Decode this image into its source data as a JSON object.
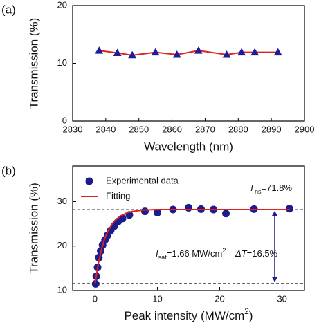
{
  "chart_data": [
    {
      "type": "line",
      "panel_label": "(a)",
      "xlabel": "Wavelength (nm)",
      "ylabel": "Transmission (%)",
      "x": [
        2838,
        2843.5,
        2848,
        2855,
        2861.5,
        2868,
        2876.5,
        2881,
        2885,
        2892
      ],
      "series": [
        {
          "marker": "triangle",
          "color": "#1c1c9c",
          "line_color": "#e0201c",
          "values": [
            12.2,
            11.8,
            11.4,
            11.9,
            11.5,
            12.2,
            11.5,
            11.9,
            11.9,
            11.9
          ]
        }
      ],
      "xlim": [
        2830,
        2900
      ],
      "xticks": [
        2830,
        2840,
        2850,
        2860,
        2870,
        2880,
        2890,
        2900
      ],
      "ylim": [
        0,
        20
      ],
      "yticks": [
        0,
        10,
        20
      ]
    },
    {
      "type": "scatter",
      "panel_label": "(b)",
      "xlabel": {
        "text": "Peak intensity (MW/cm",
        "superscript": "2",
        "suffix": ")"
      },
      "ylabel": "Transmission (%)",
      "series": [
        {
          "name": "Experimental data",
          "marker": "circle",
          "color": "#1c1c8c",
          "x": [
            0.1,
            0.2,
            0.4,
            0.6,
            0.9,
            1.2,
            1.6,
            2.0,
            2.5,
            3.1,
            3.7,
            4.4,
            5.5,
            8,
            10,
            12.5,
            15,
            17,
            19,
            21,
            25.5,
            31.2
          ],
          "values": [
            11.5,
            13.2,
            15.2,
            17.4,
            18.9,
            20.2,
            21.4,
            22.4,
            23.5,
            24.5,
            25.5,
            26.2,
            27.0,
            27.8,
            27.5,
            28.2,
            28.6,
            28.3,
            28.2,
            27.3,
            28.3,
            28.4
          ]
        },
        {
          "name": "Fitting",
          "type": "line",
          "color": "#e0201c",
          "x": [
            0,
            0.5,
            1,
            1.5,
            2,
            3,
            4,
            5,
            6,
            8,
            10,
            15,
            20,
            25,
            31.2
          ],
          "values": [
            11.6,
            15.9,
            19.1,
            21.5,
            23.2,
            25.5,
            26.7,
            27.4,
            27.8,
            28.1,
            28.2,
            28.2,
            28.2,
            28.2,
            28.2
          ]
        }
      ],
      "reference_lines": [
        28.2,
        11.6
      ],
      "annotations": [
        {
          "symbol": "T",
          "subscript": "ns",
          "text": "=71.8%"
        },
        {
          "symbol": "I",
          "subscript": "sat",
          "text": "=1.66 MW/cm",
          "superscript": "2"
        },
        {
          "symbol": "ΔT",
          "text": "=16.5%"
        }
      ],
      "xlim": [
        -3.6,
        33.6
      ],
      "xticks": [
        0,
        10,
        20,
        30
      ],
      "ylim": [
        10,
        38
      ],
      "yticks": [
        10,
        20,
        30
      ],
      "legend": "upper left"
    }
  ]
}
